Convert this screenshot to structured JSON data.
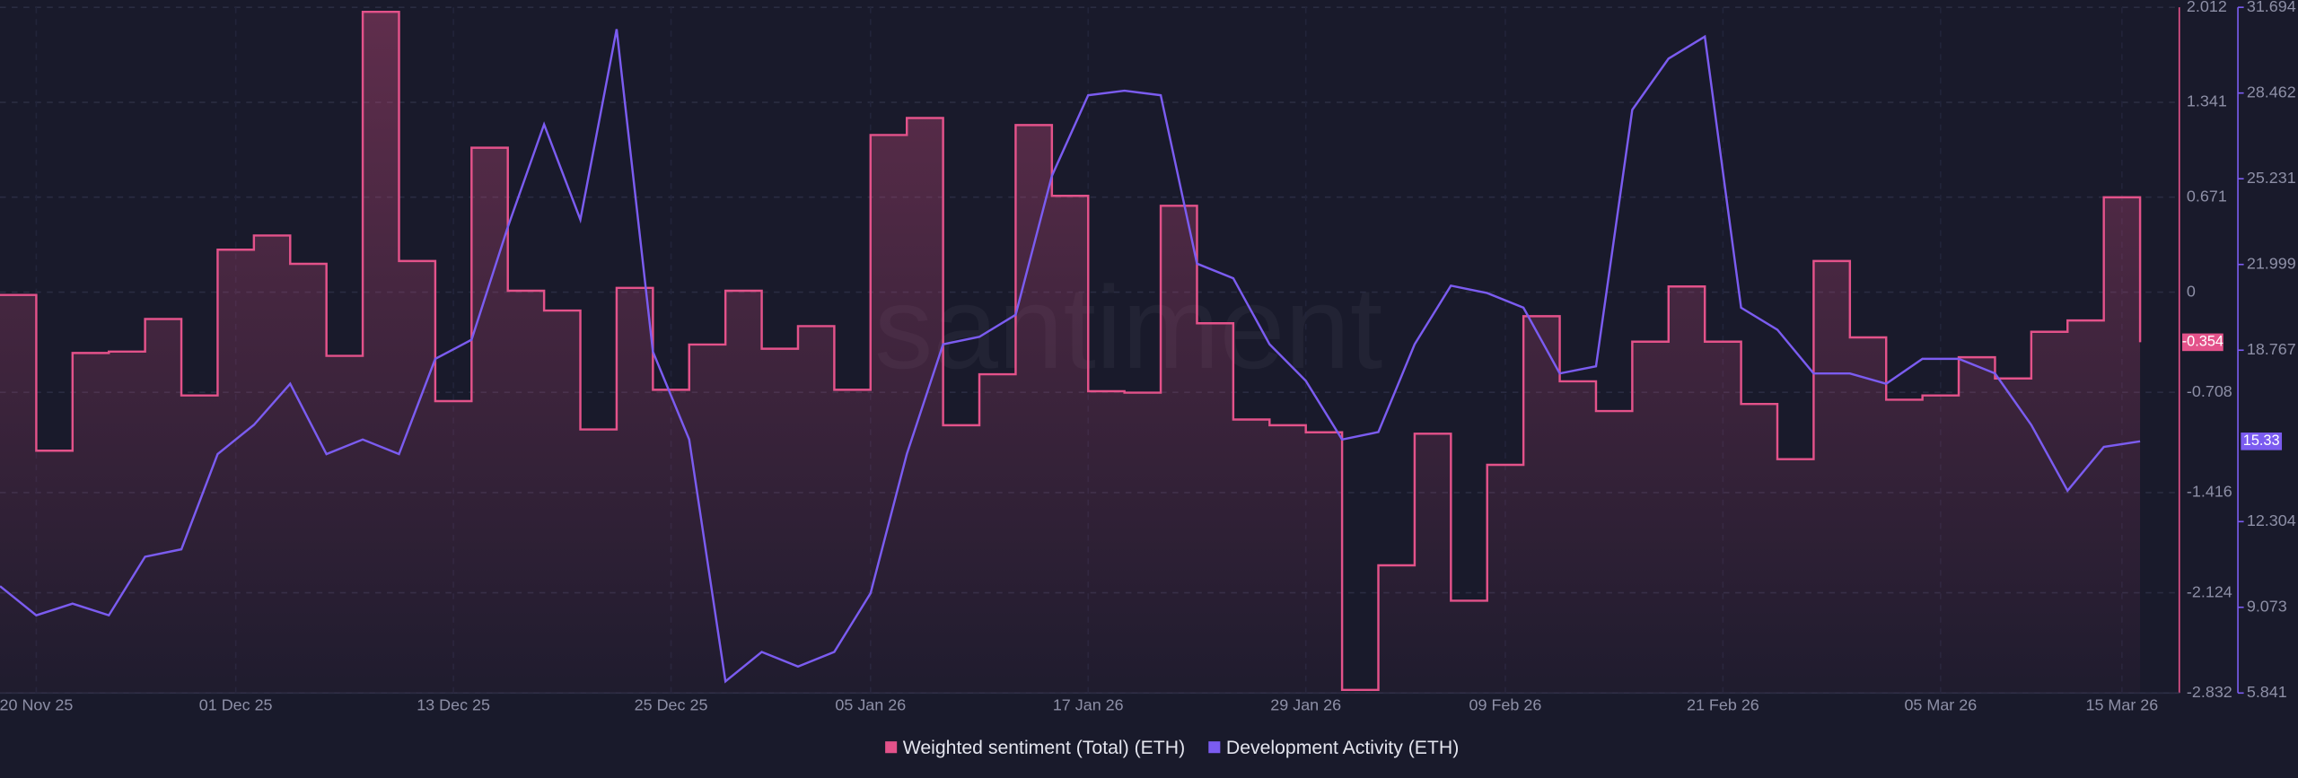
{
  "chart_data": {
    "type": "line",
    "watermark": "santiment",
    "x": [
      "2025-11-18",
      "2025-11-20",
      "2025-11-22",
      "2025-11-24",
      "2025-11-26",
      "2025-11-28",
      "2025-11-30",
      "2025-12-02",
      "2025-12-04",
      "2025-12-06",
      "2025-12-08",
      "2025-12-10",
      "2025-12-12",
      "2025-12-14",
      "2025-12-16",
      "2025-12-18",
      "2025-12-20",
      "2025-12-22",
      "2025-12-24",
      "2025-12-26",
      "2025-12-28",
      "2025-12-30",
      "2026-01-01",
      "2026-01-03",
      "2026-01-05",
      "2026-01-07",
      "2026-01-09",
      "2026-01-11",
      "2026-01-13",
      "2026-01-15",
      "2026-01-17",
      "2026-01-19",
      "2026-01-21",
      "2026-01-23",
      "2026-01-25",
      "2026-01-27",
      "2026-01-29",
      "2026-01-31",
      "2026-02-02",
      "2026-02-04",
      "2026-02-06",
      "2026-02-08",
      "2026-02-10",
      "2026-02-12",
      "2026-02-14",
      "2026-02-16",
      "2026-02-18",
      "2026-02-20",
      "2026-02-22",
      "2026-02-24",
      "2026-02-26",
      "2026-02-28",
      "2026-03-02",
      "2026-03-04",
      "2026-03-06",
      "2026-03-08",
      "2026-03-10",
      "2026-03-12",
      "2026-03-14",
      "2026-03-16"
    ],
    "xlim": [
      "2025-11-18",
      "2026-03-18"
    ],
    "xticks": [
      {
        "value": "2025-11-20",
        "label": "20 Nov 25"
      },
      {
        "value": "2025-12-01",
        "label": "01 Dec 25"
      },
      {
        "value": "2025-12-13",
        "label": "13 Dec 25"
      },
      {
        "value": "2025-12-25",
        "label": "25 Dec 25"
      },
      {
        "value": "2026-01-05",
        "label": "05 Jan 26"
      },
      {
        "value": "2026-01-17",
        "label": "17 Jan 26"
      },
      {
        "value": "2026-01-29",
        "label": "29 Jan 26"
      },
      {
        "value": "2026-02-09",
        "label": "09 Feb 26"
      },
      {
        "value": "2026-02-21",
        "label": "21 Feb 26"
      },
      {
        "value": "2026-03-05",
        "label": "05 Mar 26"
      },
      {
        "value": "2026-03-15",
        "label": "15 Mar 26"
      }
    ],
    "ylim": [
      -2.832,
      2.012
    ],
    "yticks": [
      -2.832,
      -2.124,
      -1.416,
      -0.708,
      0,
      0.671,
      1.341,
      2.012
    ],
    "y2lim": [
      5.841,
      31.694
    ],
    "y2ticks": [
      5.841,
      9.073,
      12.304,
      18.767,
      21.999,
      25.231,
      28.462,
      31.694
    ],
    "grid": true,
    "series": [
      {
        "name": "Weighted sentiment (Total) (ETH)",
        "color": "#e3528a",
        "step": true,
        "area": true,
        "values": [
          -0.02,
          -1.12,
          -0.43,
          -0.42,
          -0.19,
          -0.73,
          0.3,
          0.4,
          0.2,
          -0.45,
          1.98,
          0.22,
          -0.77,
          1.02,
          0.01,
          -0.13,
          -0.97,
          0.03,
          -0.69,
          -0.37,
          0.01,
          -0.4,
          -0.24,
          -0.69,
          1.11,
          1.23,
          -0.94,
          -0.58,
          1.18,
          0.68,
          -0.7,
          -0.71,
          0.61,
          -0.22,
          -0.9,
          -0.94,
          -0.99,
          -2.81,
          -1.93,
          -1.0,
          -2.18,
          -1.22,
          -0.17,
          -0.63,
          -0.84,
          -0.35,
          0.04,
          -0.35,
          -0.79,
          -1.18,
          0.22,
          -0.32,
          -0.76,
          -0.73,
          -0.46,
          -0.61,
          -0.28,
          -0.2,
          0.67,
          -0.354
        ]
      },
      {
        "name": "Development Activity (ETH)",
        "color": "#7b5cf0",
        "axis": "y2",
        "values": [
          9.87,
          8.77,
          9.21,
          8.77,
          10.98,
          11.26,
          14.85,
          15.95,
          17.5,
          14.85,
          15.4,
          14.85,
          18.44,
          19.16,
          23.41,
          27.28,
          23.69,
          30.87,
          18.71,
          15.4,
          6.28,
          7.39,
          6.84,
          7.39,
          9.6,
          14.85,
          18.99,
          19.27,
          20.1,
          25.34,
          28.38,
          28.55,
          28.38,
          22.03,
          21.48,
          18.99,
          17.61,
          15.4,
          15.68,
          18.99,
          21.2,
          20.92,
          20.37,
          17.89,
          18.16,
          27.83,
          29.76,
          30.59,
          20.37,
          19.54,
          17.89,
          17.89,
          17.5,
          18.44,
          18.44,
          17.89,
          15.95,
          13.47,
          15.12,
          15.33
        ]
      }
    ]
  }
}
